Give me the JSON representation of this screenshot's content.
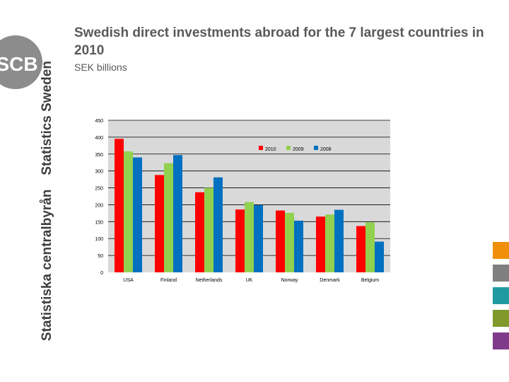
{
  "header": {
    "title": "Swedish direct investments abroad for the 7 largest countries in 2010",
    "subtitle": "SEK billions"
  },
  "branding": {
    "logo_text": "SCB",
    "side_name_en": "Statistics Sweden",
    "side_name_sv": "Statistiska centralbyrån"
  },
  "chart_data": {
    "type": "bar",
    "title": "",
    "xlabel": "",
    "ylabel": "",
    "ylim": [
      0,
      450
    ],
    "yticks": [
      0,
      50,
      100,
      150,
      200,
      250,
      300,
      350,
      400,
      450
    ],
    "grid": true,
    "legend_position": "top-right",
    "categories": [
      "USA",
      "Finland",
      "Netherlands",
      "UK",
      "Norway",
      "Denmark",
      "Belgium"
    ],
    "series": [
      {
        "name": "2010",
        "color": "#ff0000",
        "values": [
          395,
          288,
          237,
          186,
          183,
          165,
          137
        ]
      },
      {
        "name": "2009",
        "color": "#92d050",
        "values": [
          358,
          323,
          250,
          208,
          176,
          171,
          148
        ]
      },
      {
        "name": "2008",
        "color": "#0070c0",
        "values": [
          340,
          347,
          281,
          199,
          153,
          185,
          91
        ]
      }
    ]
  },
  "decor": {
    "swatch_colors": [
      "#f0900a",
      "#7f7f7f",
      "#1f9aa0",
      "#7f9a2a",
      "#7f3a8a"
    ]
  }
}
